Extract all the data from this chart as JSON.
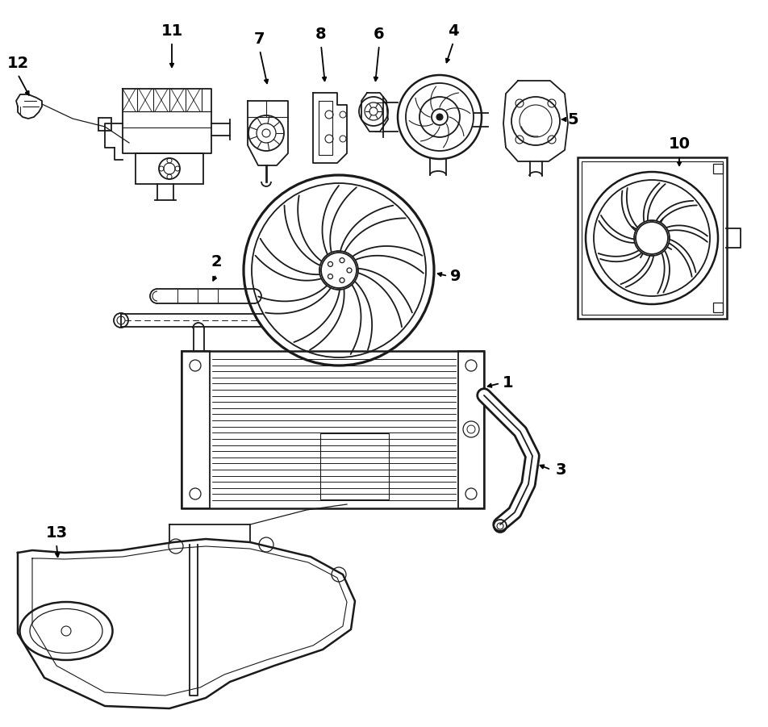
{
  "background": "#ffffff",
  "line_color": "#1a1a1a",
  "fig_width": 9.52,
  "fig_height": 9.01,
  "dpi": 100,
  "lw": 1.3
}
